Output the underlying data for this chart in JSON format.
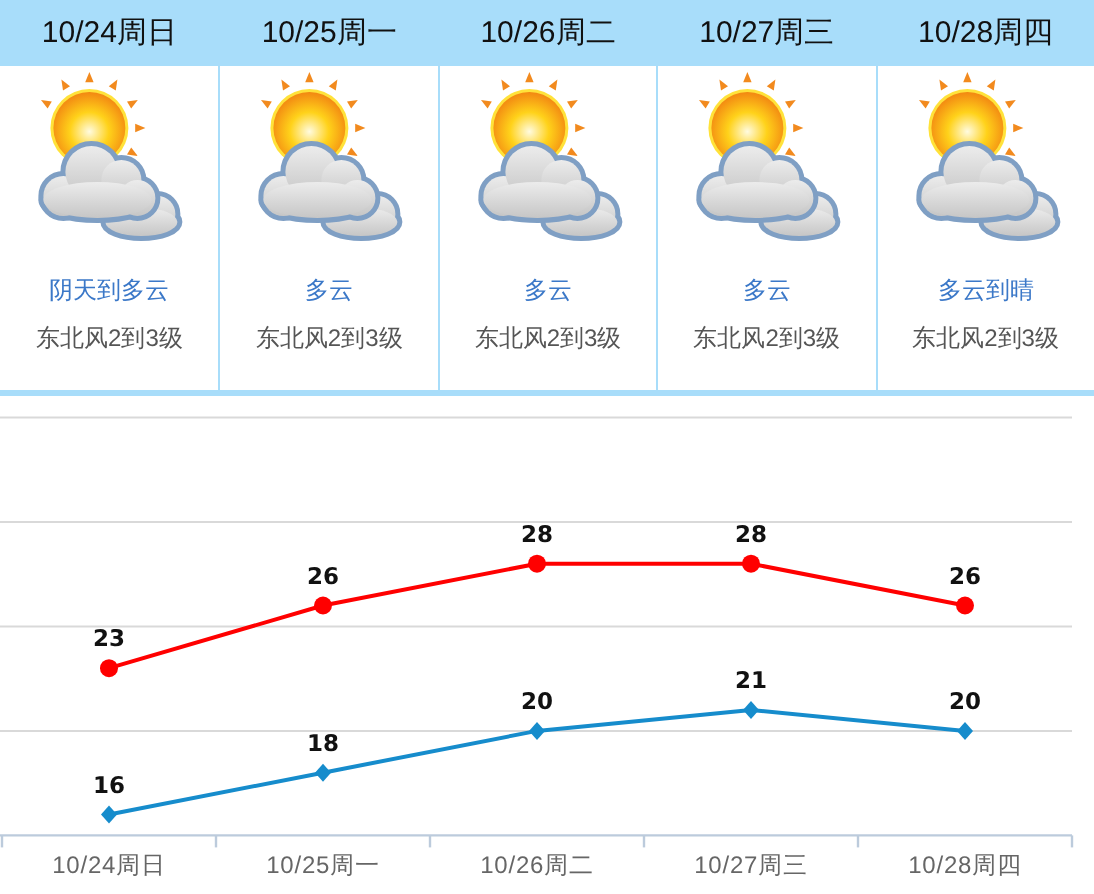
{
  "chart_data": [
    {
      "type": "other",
      "categories": [
        "10/24周日",
        "10/25周一",
        "10/26周二",
        "10/27周三",
        "10/28周四"
      ],
      "annotations": [
        "阴天到多云",
        "东北风2到3级",
        "多云",
        "东北风2到3级",
        "多云",
        "东北风2到3级",
        "多云",
        "东北风2到3级",
        "多云到晴",
        "东北风2到3级"
      ]
    },
    {
      "type": "line",
      "categories": [
        "10/24周日",
        "10/25周一",
        "10/26周二",
        "10/27周三",
        "10/28周四"
      ],
      "series": [
        {
          "color": "#ff0000",
          "marker": "circle",
          "values": [
            23,
            26,
            28,
            28,
            26
          ]
        },
        {
          "color": "#168ccc",
          "marker": "diamond",
          "values": [
            16,
            18,
            20,
            21,
            20
          ]
        }
      ],
      "ylim": [
        15,
        35
      ],
      "yticks": [
        {
          "value": 15,
          "label": null
        },
        {
          "value": 20,
          "label": null
        },
        {
          "value": 25,
          "label": null
        },
        {
          "value": 30,
          "label": null
        },
        {
          "value": 35,
          "label": null
        }
      ],
      "grid": "y",
      "tick_labels": "x",
      "data_labels": true
    }
  ]
}
